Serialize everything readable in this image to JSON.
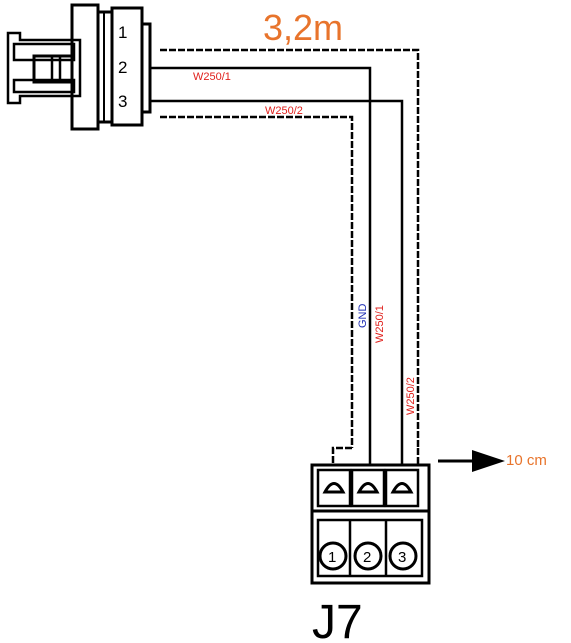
{
  "cable_length": "3,2m",
  "offset_label": "10 cm",
  "connector_name": "J7",
  "left_connector": {
    "pins": [
      "1",
      "2",
      "3"
    ]
  },
  "horizontal_wires": {
    "top": "W250/1",
    "bottom": "W250/2"
  },
  "vertical_wires": {
    "gnd": "GND",
    "w1": "W250/1",
    "w2": "W250/2"
  },
  "j7_pins": [
    "1",
    "2",
    "3"
  ],
  "colors": {
    "length_text": "#E8742C",
    "offset_text": "#E8742C",
    "red_label": "#E0201C",
    "blue_label": "#1F2FB4",
    "line": "#000000"
  }
}
